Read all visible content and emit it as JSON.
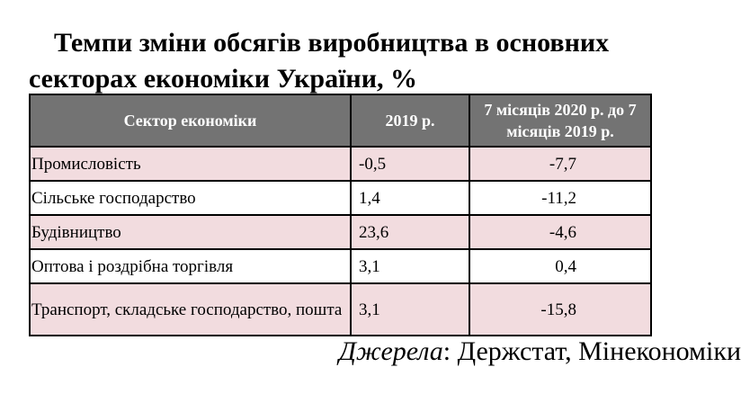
{
  "title": "Темпи зміни обсягів виробництва в основних секторах економіки України, %",
  "table": {
    "header": [
      "Сектор економіки",
      "2019 р.",
      "7 місяців 2020 р. до 7 місяців 2019 р."
    ],
    "rows": [
      [
        "Промисловість",
        "-0,5",
        "-7,7"
      ],
      [
        "Сільське господарство",
        "1,4",
        "-11,2"
      ],
      [
        "Будівництво",
        "23,6",
        "-4,6"
      ],
      [
        "Оптова і роздрібна торгівля",
        "3,1",
        "0,4"
      ],
      [
        "Транспорт, складське господарство, пошта",
        "3,1",
        "-15,8"
      ]
    ]
  },
  "source": {
    "label": "Джерела",
    "text": ": Держстат, Мінекономіки"
  }
}
